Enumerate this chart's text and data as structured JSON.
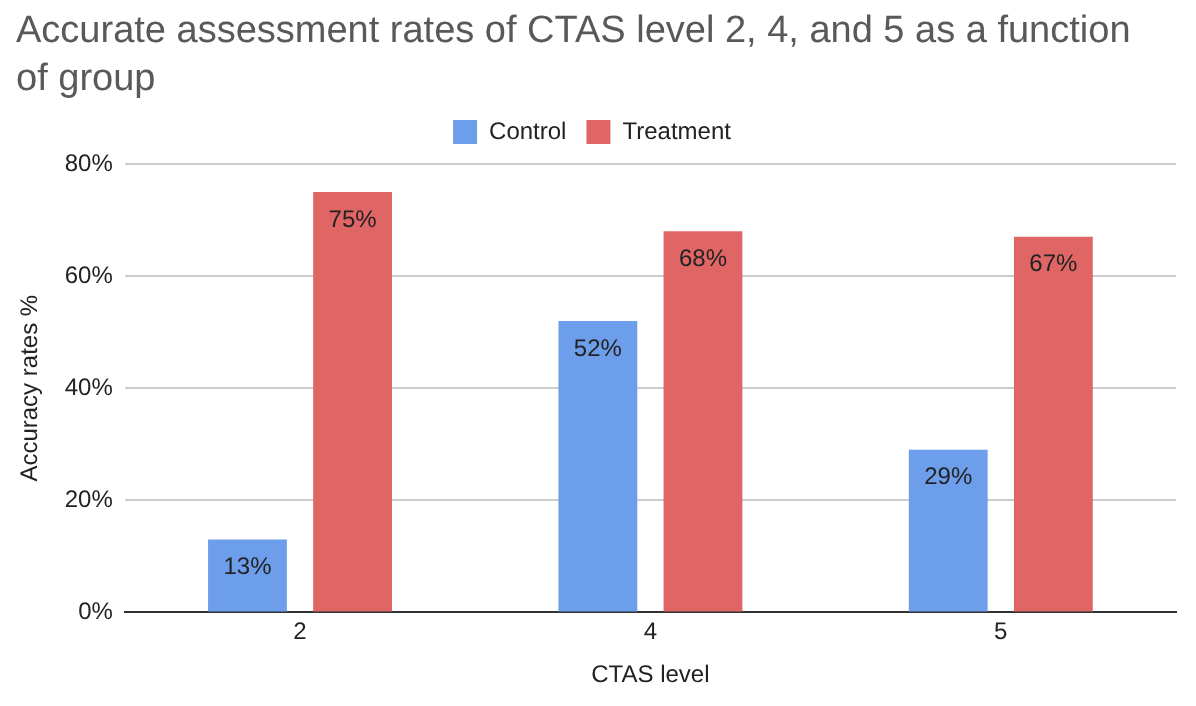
{
  "chart_data": {
    "type": "bar",
    "title": "Accurate assessment rates of CTAS level 2, 4, and 5 as a function of group",
    "xlabel": "CTAS level",
    "ylabel": "Accuracy rates %",
    "categories": [
      "2",
      "4",
      "5"
    ],
    "series": [
      {
        "name": "Control",
        "color": "#6d9eeb",
        "values": [
          13,
          52,
          29
        ],
        "value_labels": [
          "13%",
          "52%",
          "29%"
        ]
      },
      {
        "name": "Treatment",
        "color": "#e06666",
        "values": [
          75,
          68,
          67
        ],
        "value_labels": [
          "75%",
          "68%",
          "67%"
        ]
      }
    ],
    "ylim": [
      0,
      80
    ],
    "yticks": [
      {
        "value": 0,
        "label": "0%"
      },
      {
        "value": 20,
        "label": "20%"
      },
      {
        "value": 40,
        "label": "40%"
      },
      {
        "value": 60,
        "label": "60%"
      },
      {
        "value": 80,
        "label": "80%"
      }
    ],
    "grid": "y",
    "legend": "top"
  }
}
